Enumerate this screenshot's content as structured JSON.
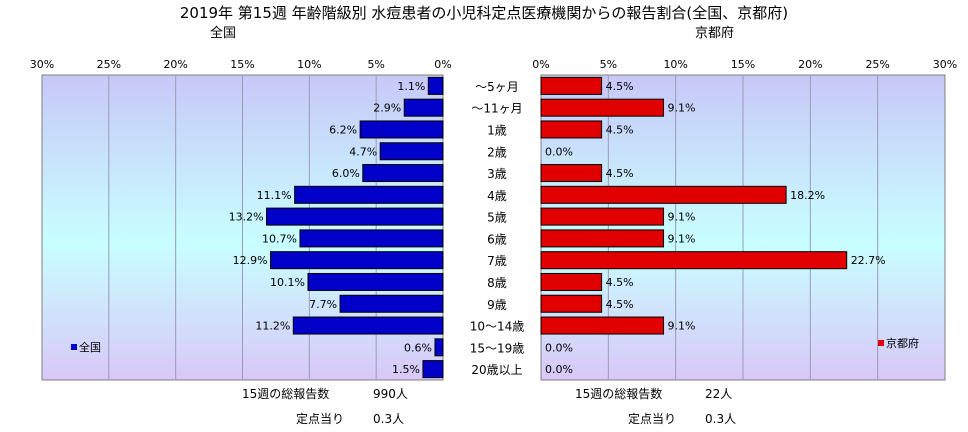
{
  "title": "2019年 第15週 年齢階級別 水痘患者の小児科定点医療機関からの報告割合(全国、京都府)",
  "categories": [
    "～5ヶ月",
    "～11ヶ月",
    "1歳",
    "2歳",
    "3歳",
    "4歳",
    "5歳",
    "6歳",
    "7歳",
    "8歳",
    "9歳",
    "10～14歳",
    "15～19歳",
    "20歳以上"
  ],
  "colors": {
    "national": "#0000c8",
    "kyoto": "#e00000",
    "plot_bg_top": "#c8c8f8",
    "plot_bg_mid": "#c8ffff",
    "plot_bg_bottom": "#d8c8f8"
  },
  "chart_data": [
    {
      "type": "bar",
      "title": "全国",
      "orientation": "horizontal-reversed",
      "categories": [
        "～5ヶ月",
        "～11ヶ月",
        "1歳",
        "2歳",
        "3歳",
        "4歳",
        "5歳",
        "6歳",
        "7歳",
        "8歳",
        "9歳",
        "10～14歳",
        "15～19歳",
        "20歳以上"
      ],
      "series": [
        {
          "name": "全国",
          "values": [
            1.1,
            2.9,
            6.2,
            4.7,
            6.0,
            11.1,
            13.2,
            10.7,
            12.9,
            10.1,
            7.7,
            11.2,
            0.6,
            1.5
          ]
        }
      ],
      "data_labels": [
        "1.1%",
        "2.9%",
        "6.2%",
        "4.7%",
        "6.0%",
        "11.1%",
        "13.2%",
        "10.7%",
        "12.9%",
        "10.1%",
        "7.7%",
        "11.2%",
        "0.6%",
        "1.5%"
      ],
      "xlim": [
        0,
        30
      ],
      "ticks": [
        "30%",
        "25%",
        "20%",
        "15%",
        "10%",
        "5%",
        "0%"
      ],
      "tick_values": [
        30,
        25,
        20,
        15,
        10,
        5,
        0
      ],
      "grid": true,
      "legend": "bottom-left"
    },
    {
      "type": "bar",
      "title": "京都府",
      "orientation": "horizontal",
      "categories": [
        "～5ヶ月",
        "～11ヶ月",
        "1歳",
        "2歳",
        "3歳",
        "4歳",
        "5歳",
        "6歳",
        "7歳",
        "8歳",
        "9歳",
        "10～14歳",
        "15～19歳",
        "20歳以上"
      ],
      "series": [
        {
          "name": "京都府",
          "values": [
            4.5,
            9.1,
            4.5,
            0.0,
            4.5,
            18.2,
            9.1,
            9.1,
            22.7,
            4.5,
            4.5,
            9.1,
            0.0,
            0.0
          ]
        }
      ],
      "data_labels": [
        "4.5%",
        "9.1%",
        "4.5%",
        "0.0%",
        "4.5%",
        "18.2%",
        "9.1%",
        "9.1%",
        "22.7%",
        "4.5%",
        "4.5%",
        "9.1%",
        "0.0%",
        "0.0%"
      ],
      "xlim": [
        0,
        30
      ],
      "ticks": [
        "0%",
        "5%",
        "10%",
        "15%",
        "20%",
        "25%",
        "30%"
      ],
      "tick_values": [
        0,
        5,
        10,
        15,
        20,
        25,
        30
      ],
      "grid": true,
      "legend": "bottom-right"
    }
  ],
  "stats": {
    "national_total_label": "15週の総報告数",
    "national_total_value": "990人",
    "national_per_label": "定点当り",
    "national_per_value": "0.3人",
    "kyoto_total_label": "15週の総報告数",
    "kyoto_total_value": "22人",
    "kyoto_per_label": "定点当り",
    "kyoto_per_value": "0.3人"
  }
}
